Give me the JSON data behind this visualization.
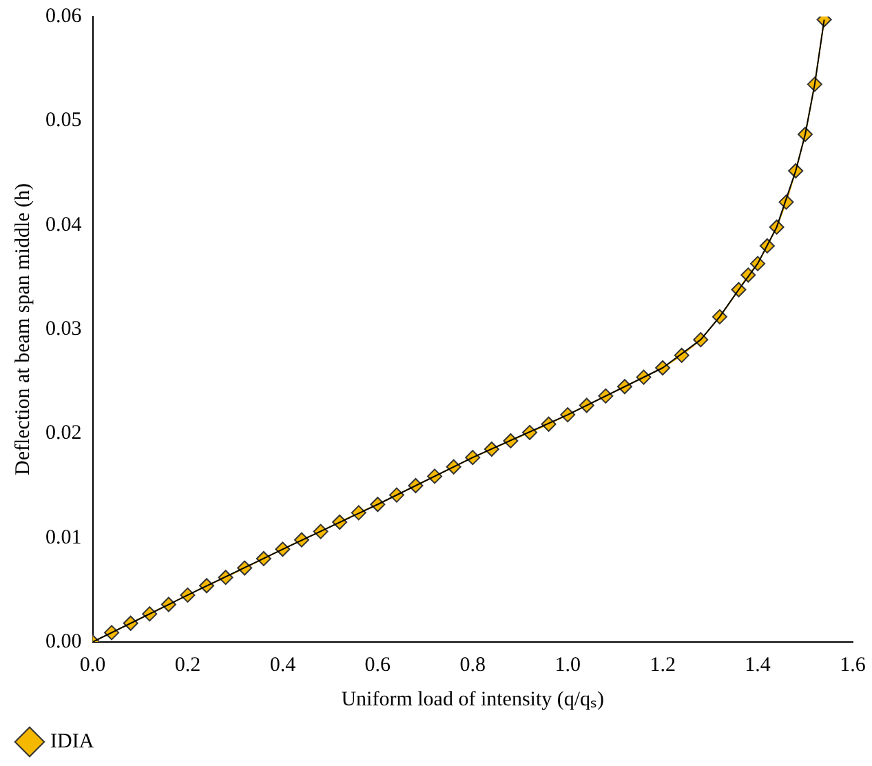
{
  "chart_data": {
    "type": "line",
    "xlabel": "Uniform load of intensity (q/qₛ)",
    "ylabel": "Deflection at beam span middle (h)",
    "xlim": [
      0,
      1.6
    ],
    "xticks": [
      {
        "value": 0,
        "label": "0.0"
      },
      {
        "value": 0.2,
        "label": "0.2"
      },
      {
        "value": 0.4,
        "label": "0.4"
      },
      {
        "value": 0.6,
        "label": "0.6"
      },
      {
        "value": 0.8,
        "label": "0.8"
      },
      {
        "value": 1,
        "label": "1.0"
      },
      {
        "value": 1.2,
        "label": "1.2"
      },
      {
        "value": 1.4,
        "label": "1.4"
      },
      {
        "value": 1.6,
        "label": "1.6"
      }
    ],
    "ylim": [
      0,
      0.06
    ],
    "yticks": [
      {
        "value": 0,
        "label": "0.00"
      },
      {
        "value": 0.01,
        "label": "0.01"
      },
      {
        "value": 0.02,
        "label": "0.02"
      },
      {
        "value": 0.03,
        "label": "0.03"
      },
      {
        "value": 0.04,
        "label": "0.04"
      },
      {
        "value": 0.05,
        "label": "0.05"
      },
      {
        "value": 0.06,
        "label": "0.06"
      }
    ],
    "grid": false,
    "legend": "bottom left",
    "series": [
      {
        "color": "#000000",
        "marker": "none",
        "x": [
          0,
          0.2,
          0.4,
          0.6,
          0.8,
          1.0,
          1.2,
          1.28,
          1.32,
          1.36,
          1.4,
          1.44,
          1.48,
          1.5,
          1.52,
          1.54
        ],
        "values": [
          0,
          0.0045,
          0.0089,
          0.0132,
          0.0177,
          0.0218,
          0.0263,
          0.029,
          0.0312,
          0.0338,
          0.0363,
          0.0398,
          0.0452,
          0.0487,
          0.0535,
          0.0597
        ]
      },
      {
        "name": "IDIA",
        "color": "#f5b800",
        "marker": "diamond",
        "x": [
          0,
          0.04,
          0.08,
          0.12,
          0.16,
          0.2,
          0.24,
          0.28,
          0.32,
          0.36,
          0.4,
          0.44,
          0.48,
          0.52,
          0.56,
          0.6,
          0.64,
          0.68,
          0.72,
          0.76,
          0.8,
          0.84,
          0.88,
          0.92,
          0.96,
          1.0,
          1.04,
          1.08,
          1.12,
          1.16,
          1.2,
          1.24,
          1.28,
          1.32,
          1.36,
          1.38,
          1.4,
          1.42,
          1.44,
          1.46,
          1.48,
          1.5,
          1.52,
          1.54
        ],
        "values": [
          0,
          0.0009,
          0.0018,
          0.0027,
          0.0036,
          0.0045,
          0.0054,
          0.0062,
          0.0071,
          0.008,
          0.0089,
          0.0098,
          0.0106,
          0.0115,
          0.0124,
          0.0132,
          0.0141,
          0.015,
          0.0159,
          0.0168,
          0.0177,
          0.0185,
          0.0193,
          0.0201,
          0.0209,
          0.0218,
          0.0227,
          0.0236,
          0.0245,
          0.0254,
          0.0263,
          0.0275,
          0.029,
          0.0312,
          0.0338,
          0.0352,
          0.0363,
          0.038,
          0.0398,
          0.0422,
          0.0452,
          0.0487,
          0.0535,
          0.0597
        ]
      }
    ]
  }
}
